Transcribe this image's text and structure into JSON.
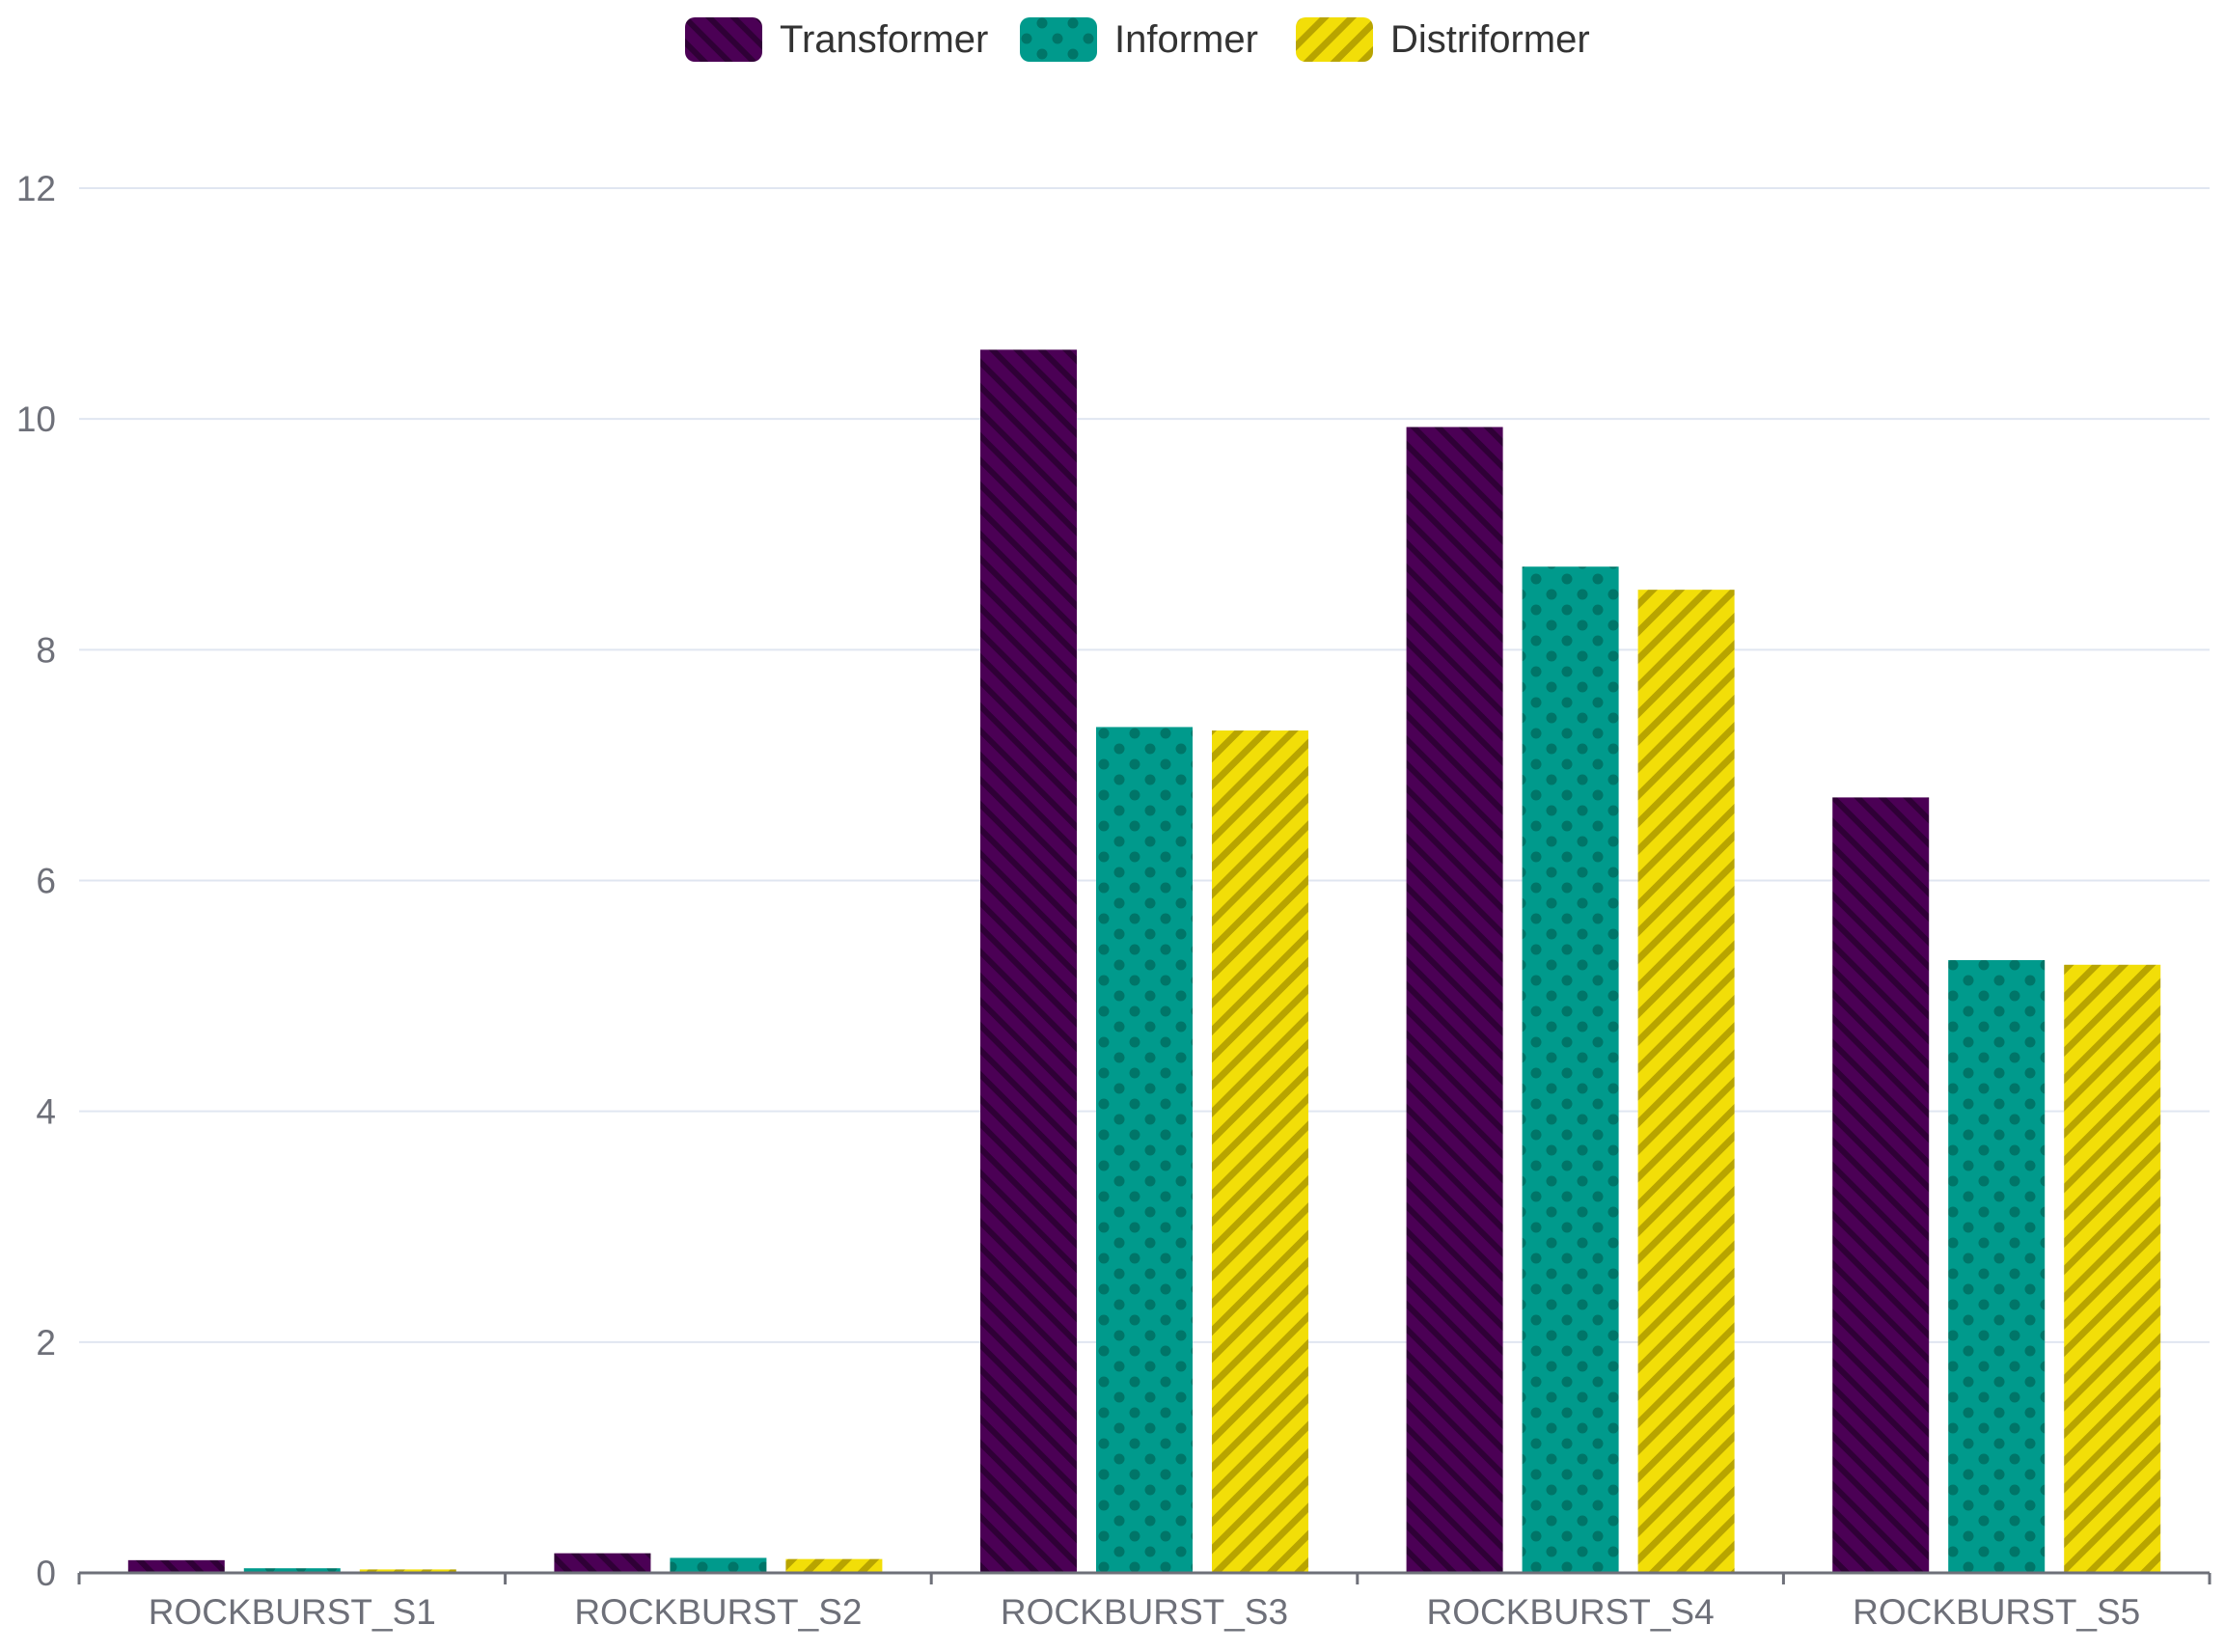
{
  "chart_data": {
    "type": "bar",
    "title": "",
    "xlabel": "",
    "ylabel": "",
    "categories": [
      "ROCKBURST_S1",
      "ROCKBURST_S2",
      "ROCKBURST_S3",
      "ROCKBURST_S4",
      "ROCKBURST_S5"
    ],
    "series": [
      {
        "name": "Transformer",
        "values": [
          0.11,
          0.17,
          10.6,
          9.93,
          6.72
        ],
        "color": "#4b0055",
        "pattern": "diagonal-hatch"
      },
      {
        "name": "Informer",
        "values": [
          0.04,
          0.13,
          7.33,
          8.72,
          5.31
        ],
        "color": "#009a8c",
        "pattern": "dots"
      },
      {
        "name": "Distriformer",
        "values": [
          0.03,
          0.12,
          7.3,
          8.52,
          5.27
        ],
        "color": "#f2de08",
        "pattern": "diagonal-stripes"
      }
    ],
    "ylim": [
      0,
      12
    ],
    "yticks": [
      0,
      2,
      4,
      6,
      8,
      10,
      12
    ],
    "grid": true,
    "legend_position": "top-center"
  }
}
